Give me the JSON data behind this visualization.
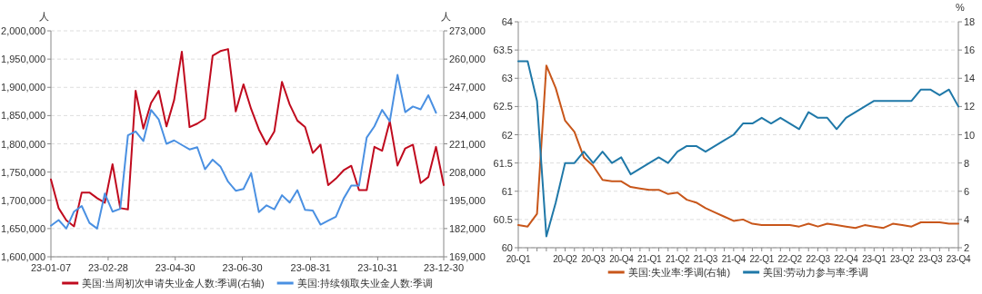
{
  "chart_data": [
    {
      "type": "line",
      "ylabel": "人",
      "y2label": "人",
      "x": [
        "--01-07",
        "--01-14",
        "--01-21",
        "--01-28",
        "--02-04",
        "--02-11",
        "--02-18",
        "--02-25",
        "--03-04",
        "--03-11",
        "--03-18",
        "--03-25",
        "--04-01",
        "--04-08",
        "--04-15",
        "--04-22",
        "--04-29",
        "--05-06",
        "--05-13",
        "--05-20",
        "--05-27",
        "--06-03",
        "--06-10",
        "--06-17",
        "--06-24",
        "--07-01",
        "--07-08",
        "--07-15",
        "--07-22",
        "--07-29",
        "--08-05",
        "--08-12",
        "--08-19",
        "--08-26",
        "--09-02",
        "--09-09",
        "--09-16",
        "--09-23",
        "--09-30",
        "--10-07",
        "--10-14",
        "--10-21",
        "--10-28",
        "--11-04",
        "--11-11",
        "--11-18",
        "--11-25",
        "--12-02",
        "--12-09",
        "--12-16",
        "--12-23",
        "--12-30"
      ],
      "xlim": [
        "--01-07",
        "--12-30"
      ],
      "xticks": [
        {
          "value": "--01-07",
          "label": "23-01-07"
        },
        {
          "value": "--02-28",
          "label": "23-02-28"
        },
        {
          "value": "--04-30",
          "label": "23-04-30"
        },
        {
          "value": "--06-30",
          "label": "23-06-30"
        },
        {
          "value": "--08-31",
          "label": "23-08-31"
        },
        {
          "value": "--10-31",
          "label": "23-10-31"
        },
        {
          "value": "--12-30",
          "label": "23-12-30"
        }
      ],
      "ylim": [
        1600000,
        2000000
      ],
      "yticks": [
        {
          "value": 1600000,
          "label": "1,600,000"
        },
        {
          "value": 1650000,
          "label": "1,650,000"
        },
        {
          "value": 1700000,
          "label": "1,700,000"
        },
        {
          "value": 1750000,
          "label": "1,750,000"
        },
        {
          "value": 1800000,
          "label": "1,800,000"
        },
        {
          "value": 1850000,
          "label": "1,850,000"
        },
        {
          "value": 1900000,
          "label": "1,900,000"
        },
        {
          "value": 1950000,
          "label": "1,950,000"
        },
        {
          "value": 2000000,
          "label": "2,000,000"
        }
      ],
      "y2lim": [
        169000,
        273000
      ],
      "y2ticks": [
        {
          "value": 169000,
          "label": "169,000"
        },
        {
          "value": 182000,
          "label": "182,000"
        },
        {
          "value": 195000,
          "label": "195,000"
        },
        {
          "value": 208000,
          "label": "208,000"
        },
        {
          "value": 221000,
          "label": "221,000"
        },
        {
          "value": 234000,
          "label": "234,000"
        },
        {
          "value": 247000,
          "label": "247,000"
        },
        {
          "value": 260000,
          "label": "260,000"
        },
        {
          "value": 273000,
          "label": "273,000"
        }
      ],
      "grid": "y",
      "legend": "bottom",
      "line_style": "solid",
      "series": [
        {
          "name": "美国:当周初次申请失业金人数:季调(右轴)",
          "color": "#c00a1e",
          "axis": "y2",
          "values": [
            204600,
            191400,
            185800,
            183000,
            198600,
            198600,
            196000,
            193900,
            211600,
            191400,
            190800,
            245400,
            228000,
            239800,
            245400,
            229000,
            241200,
            263400,
            228700,
            230300,
            232600,
            261600,
            263700,
            264600,
            235900,
            248400,
            237000,
            227600,
            220700,
            226600,
            249500,
            239100,
            231700,
            228700,
            216800,
            220600,
            202000,
            205000,
            208800,
            210900,
            199700,
            199700,
            219600,
            217800,
            231400,
            211000,
            218900,
            220600,
            202900,
            205700,
            219600,
            202000
          ]
        },
        {
          "name": "美国:持续领取失业金人数:季调",
          "color": "#4a90e2",
          "values": [
            1655000,
            1665000,
            1650000,
            1680000,
            1690000,
            1660000,
            1650000,
            1712000,
            1680000,
            1685000,
            1815000,
            1822000,
            1805000,
            1860000,
            1843000,
            1800000,
            1806000,
            1798000,
            1790000,
            1794000,
            1755000,
            1772000,
            1760000,
            1733000,
            1717000,
            1720000,
            1748000,
            1679000,
            1691000,
            1684000,
            1709000,
            1696000,
            1718000,
            1683000,
            1682000,
            1657000,
            1664000,
            1671000,
            1703000,
            1726000,
            1726000,
            1811000,
            1831000,
            1860000,
            1840000,
            1922000,
            1856000,
            1866000,
            1861000,
            1886000,
            1855000,
            null
          ]
        }
      ]
    },
    {
      "type": "line",
      "y2label": "%",
      "categories": [
        "20-Q1",
        null,
        null,
        null,
        null,
        "20-Q2",
        null,
        null,
        "20-Q3",
        null,
        null,
        "20-Q4",
        null,
        null,
        "21-Q1",
        null,
        null,
        "21-Q2",
        null,
        null,
        "21-Q3",
        null,
        null,
        "21-Q4",
        null,
        null,
        "22-Q1",
        null,
        null,
        "22-Q2",
        null,
        null,
        "22-Q3",
        null,
        null,
        "22-Q4",
        null,
        null,
        "23-Q1",
        null,
        null,
        "23-Q2",
        null,
        null,
        "23-Q3",
        null,
        null,
        "23-Q4"
      ],
      "ylim": [
        60,
        64
      ],
      "yticks": [
        60,
        60.5,
        61,
        61.5,
        62,
        62.5,
        63,
        63.5,
        64
      ],
      "y2lim": [
        2,
        18
      ],
      "y2ticks": [
        2,
        4,
        6,
        8,
        10,
        12,
        14,
        16,
        18
      ],
      "grid": "y",
      "legend": "bottom",
      "line_style": "solid",
      "series": [
        {
          "name": "美国:失业率:季调(右轴)",
          "color": "#c8561a",
          "axis": "y2",
          "values": [
            3.6,
            3.5,
            4.4,
            14.9,
            13.3,
            11.0,
            10.2,
            8.4,
            7.8,
            6.8,
            6.7,
            6.7,
            6.3,
            6.2,
            6.1,
            6.1,
            5.8,
            5.9,
            5.4,
            5.2,
            4.8,
            4.5,
            4.2,
            3.9,
            4.0,
            3.7,
            3.6,
            3.6,
            3.6,
            3.6,
            3.5,
            3.7,
            3.5,
            3.7,
            3.6,
            3.5,
            3.4,
            3.6,
            3.5,
            3.4,
            3.7,
            3.6,
            3.5,
            3.8,
            3.8,
            3.8,
            3.7,
            3.7
          ]
        },
        {
          "name": "美国:劳动力参与率:季调",
          "color": "#1f78a8",
          "values": [
            63.3,
            63.3,
            62.6,
            60.2,
            60.8,
            61.5,
            61.5,
            61.7,
            61.5,
            61.7,
            61.5,
            61.6,
            61.3,
            61.4,
            61.5,
            61.6,
            61.5,
            61.7,
            61.8,
            61.8,
            61.7,
            61.8,
            61.9,
            62.0,
            62.2,
            62.2,
            62.3,
            62.2,
            62.3,
            62.2,
            62.1,
            62.4,
            62.3,
            62.3,
            62.1,
            62.3,
            62.4,
            62.5,
            62.6,
            62.6,
            62.6,
            62.6,
            62.6,
            62.8,
            62.8,
            62.7,
            62.8,
            62.5
          ]
        }
      ]
    }
  ]
}
